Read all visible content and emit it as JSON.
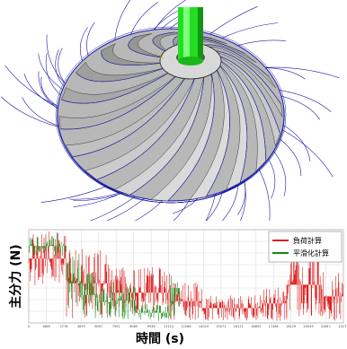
{
  "chart_data": {
    "type": "line",
    "ylabel": "主分力 (N)",
    "xlabel": "時間 (s)",
    "legend_position": "top-right",
    "series": [
      {
        "name": "負荷計算",
        "color": "#dd2222"
      },
      {
        "name": "平滑化計算",
        "color": "#118811"
      }
    ],
    "x_tick_labels": [
      "0",
      "1889",
      "3778",
      "4833",
      "6097",
      "7991",
      "8085",
      "9938",
      "11114",
      "12288",
      "14029",
      "15071",
      "16111",
      "16853",
      "17484",
      "18129",
      "20049",
      "20811",
      "22271"
    ],
    "y_tick_labels": [
      "",
      "",
      "",
      "",
      "",
      "",
      "",
      "",
      ""
    ],
    "grid": true
  },
  "colors": {
    "impeller_wire": "#1a1aa8",
    "shaft": "#22dd22",
    "blade": "#9c9c9c"
  }
}
